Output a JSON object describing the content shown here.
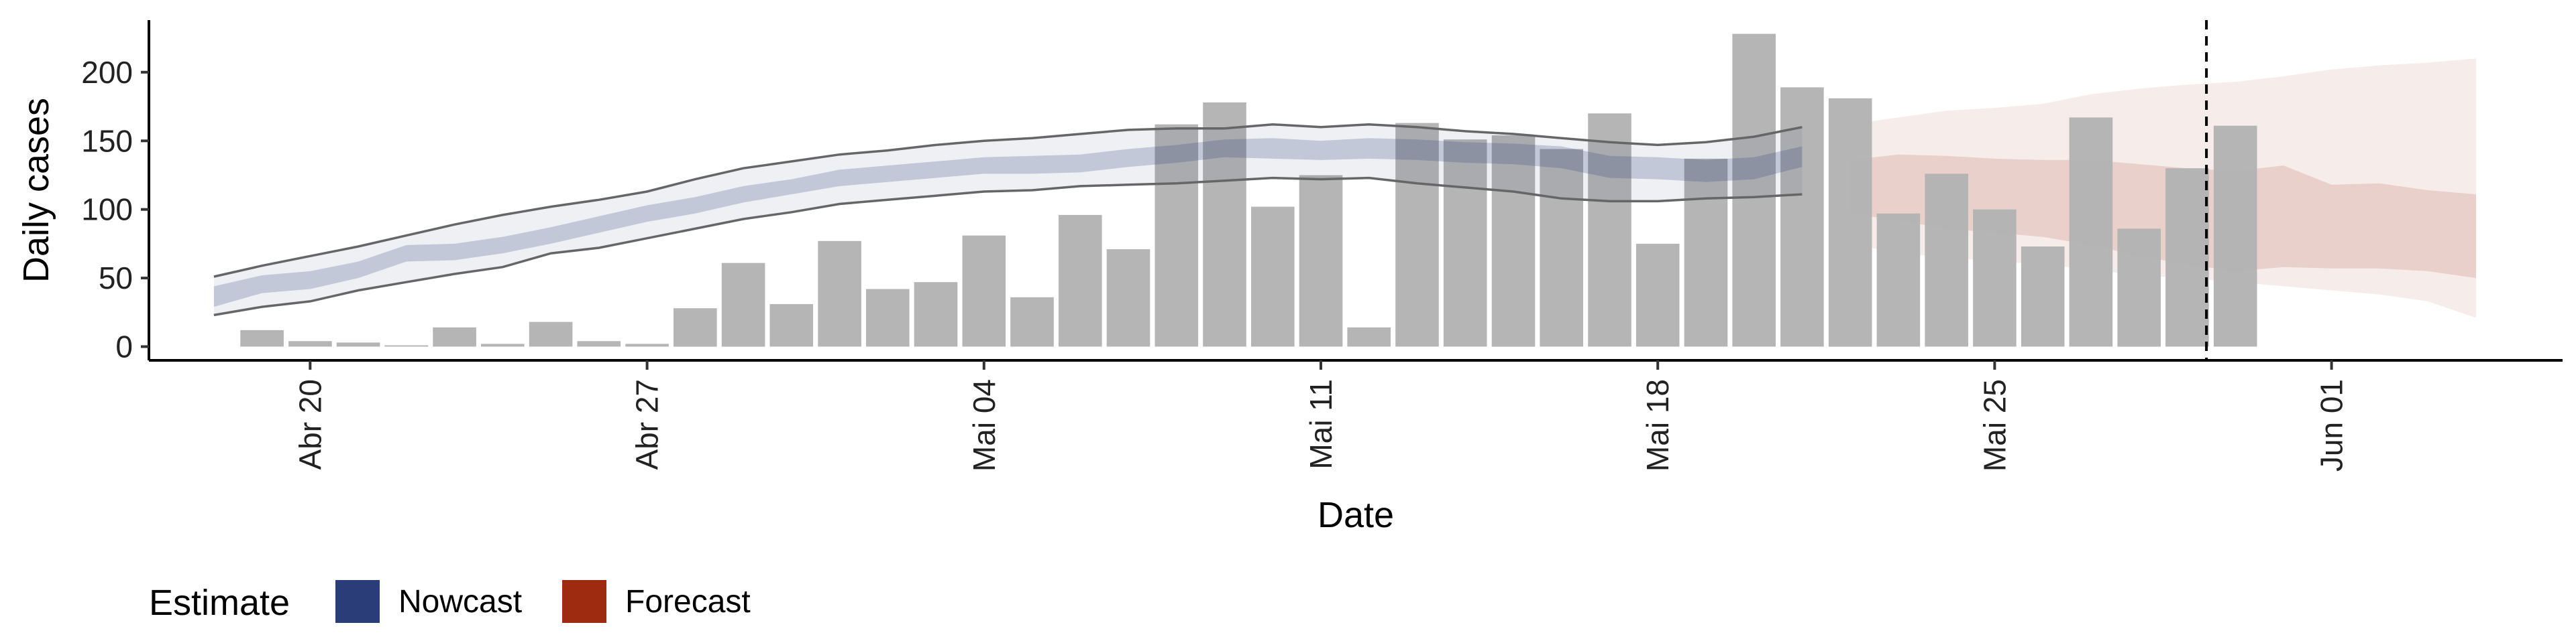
{
  "chart_data": {
    "type": "bar",
    "title": "",
    "xlabel": "Date",
    "ylabel": "Daily cases",
    "ylim": [
      -10,
      238
    ],
    "yticks": [
      0,
      50,
      100,
      150,
      200
    ],
    "xticks": [
      {
        "day": 3,
        "label": "Abr 20"
      },
      {
        "day": 10,
        "label": "Abr 27"
      },
      {
        "day": 17,
        "label": "Mai 04"
      },
      {
        "day": 24,
        "label": "Mai 11"
      },
      {
        "day": 31,
        "label": "Mai 18"
      },
      {
        "day": 38,
        "label": "Mai 25"
      },
      {
        "day": 45,
        "label": "Jun 01"
      }
    ],
    "xlim": [
      -0.35,
      49.8
    ],
    "grid": false,
    "bars": {
      "color": "#b3b3b3",
      "x": [
        2,
        3,
        4,
        5,
        6,
        7,
        8,
        9,
        10,
        11,
        12,
        13,
        14,
        15,
        16,
        17,
        18,
        19,
        20,
        21,
        22,
        23,
        24,
        25,
        26,
        27,
        28,
        29,
        30,
        31,
        32,
        33,
        34,
        35,
        36,
        37,
        38,
        39,
        40,
        41,
        42,
        43
      ],
      "values": [
        12,
        4,
        3,
        1,
        14,
        2,
        18,
        4,
        2,
        28,
        61,
        31,
        77,
        42,
        47,
        81,
        36,
        96,
        71,
        162,
        178,
        102,
        125,
        14,
        163,
        151,
        154,
        144,
        170,
        75,
        137,
        228,
        189,
        181,
        97,
        126,
        100,
        73,
        167,
        86,
        130,
        161
      ]
    },
    "nowcast": {
      "color": "#2b3d78",
      "x": [
        1,
        2,
        3,
        4,
        5,
        6,
        7,
        8,
        9,
        10,
        11,
        12,
        13,
        14,
        15,
        16,
        17,
        18,
        19,
        20,
        21,
        22,
        23,
        24,
        25,
        26,
        27,
        28,
        29,
        30,
        31,
        32,
        33,
        34
      ],
      "median": [
        36,
        45,
        48,
        55,
        67,
        68,
        73,
        80,
        88,
        96,
        102,
        110,
        115,
        122,
        125,
        128,
        131,
        131,
        132,
        136,
        139,
        143,
        143,
        142,
        143,
        142,
        140,
        139,
        136,
        129,
        128,
        126,
        128,
        137
      ],
      "inner_lower": [
        29,
        39,
        42,
        50,
        62,
        63,
        68,
        75,
        83,
        91,
        97,
        105,
        111,
        117,
        120,
        123,
        126,
        126,
        127,
        131,
        134,
        138,
        137,
        136,
        137,
        136,
        134,
        133,
        130,
        123,
        122,
        120,
        122,
        131
      ],
      "inner_upper": [
        44,
        52,
        55,
        62,
        74,
        75,
        80,
        87,
        95,
        103,
        109,
        117,
        122,
        129,
        132,
        135,
        138,
        139,
        140,
        144,
        147,
        151,
        152,
        150,
        152,
        151,
        149,
        148,
        146,
        139,
        138,
        136,
        138,
        146
      ],
      "outer_lower": [
        23,
        29,
        33,
        41,
        47,
        53,
        58,
        68,
        72,
        79,
        86,
        93,
        98,
        104,
        107,
        110,
        113,
        114,
        117,
        118,
        119,
        121,
        123,
        122,
        123,
        119,
        116,
        113,
        108,
        106,
        106,
        108,
        109,
        111
      ],
      "outer_upper": [
        51,
        59,
        66,
        73,
        81,
        89,
        96,
        102,
        107,
        113,
        122,
        130,
        135,
        140,
        143,
        147,
        150,
        152,
        155,
        158,
        159,
        159,
        162,
        160,
        162,
        160,
        157,
        155,
        152,
        149,
        147,
        149,
        153,
        160
      ]
    },
    "forecast": {
      "color": "#9e2a10",
      "x": [
        35,
        36,
        37,
        38,
        39,
        40,
        41,
        42,
        43,
        44,
        45,
        46,
        47,
        48
      ],
      "inner_lower": [
        108,
        102,
        97,
        95,
        94,
        91,
        89,
        86,
        86,
        85,
        84,
        83,
        81,
        79
      ],
      "inner_upper": [
        136,
        140,
        139,
        137,
        136,
        136,
        133,
        130,
        128,
        132,
        118,
        119,
        114,
        111
      ],
      "median": [
        97,
        92,
        86,
        83,
        80,
        74,
        66,
        60,
        55,
        58,
        57,
        57,
        55,
        50
      ],
      "outer_lower": [
        75,
        68,
        65,
        62,
        60,
        56,
        52,
        50,
        47,
        44,
        41,
        38,
        33,
        21
      ],
      "outer_upper": [
        162,
        167,
        172,
        174,
        177,
        184,
        188,
        191,
        193,
        197,
        202,
        205,
        207,
        210
      ],
      "lower_inner_extra": [
        97,
        92,
        86,
        83,
        80,
        74,
        66,
        60,
        55,
        58,
        57,
        57,
        55,
        50
      ]
    },
    "forecast_date_day": 42.4,
    "legend": {
      "title": "Estimate",
      "position": "bottom-left",
      "entries": [
        {
          "label": "Nowcast",
          "color": "#2b3d78"
        },
        {
          "label": "Forecast",
          "color": "#9e2a10"
        }
      ]
    }
  }
}
